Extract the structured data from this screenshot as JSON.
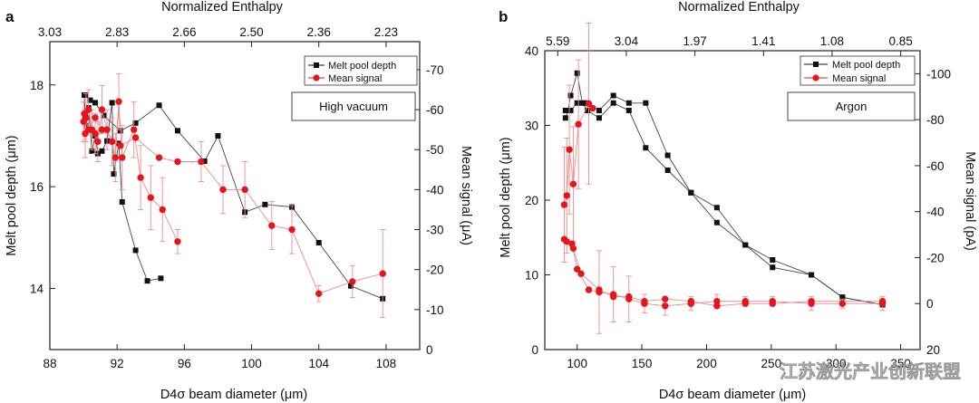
{
  "watermark": "江苏激光产业创新联盟",
  "colors": {
    "black_series": "#111111",
    "red_series": "#e8141b",
    "red_error": "#f08a8d",
    "frame": "#222222"
  },
  "chart_data": [
    {
      "type": "scatter",
      "panel": "a",
      "condition": "High vacuum",
      "xlabel": "D4σ beam diameter (μm)",
      "ylabel_left": "Melt pool depth (μm)",
      "ylabel_right": "Mean signal (μA)",
      "xlabel_top": "Normalized Enthalpy",
      "xlim": [
        88,
        110
      ],
      "ylim_left": [
        12.8,
        18.85
      ],
      "ylim_right": [
        0,
        -77
      ],
      "x_ticks": [
        "88",
        "92",
        "96",
        "100",
        "104",
        "108"
      ],
      "x_tick_values": [
        88,
        92,
        96,
        100,
        104,
        108
      ],
      "y_ticks_left": [
        "14",
        "16",
        "18"
      ],
      "y_tick_values_left": [
        14,
        16,
        18
      ],
      "y_ticks_right": [
        "0",
        "-10",
        "-20",
        "-30",
        "-40",
        "-50",
        "-60",
        "-70"
      ],
      "y_tick_values_right": [
        0,
        -10,
        -20,
        -30,
        -40,
        -50,
        -60,
        -70
      ],
      "top_ticks": [
        "3.03",
        "2.83",
        "2.66",
        "2.50",
        "2.36",
        "2.23"
      ],
      "top_tick_positions": [
        88,
        92,
        96,
        100,
        104,
        108
      ],
      "legend": [
        "Melt pool depth",
        "Mean signal"
      ],
      "series": [
        {
          "name": "Melt pool depth",
          "axis": "left",
          "marker": "square",
          "lines": [
            [
              [
                90.05,
                17.8
              ],
              [
                90.1,
                17.35
              ],
              [
                90.15,
                17.2
              ],
              [
                90.3,
                17.55
              ],
              [
                90.5,
                16.7
              ],
              [
                90.7,
                17.0
              ],
              [
                90.85,
                16.65
              ],
              [
                91.1,
                16.7
              ],
              [
                91.4,
                16.9
              ],
              [
                91.7,
                17.65
              ],
              [
                91.8,
                16.25
              ],
              [
                92.1,
                16.85
              ],
              [
                92.3,
                15.7
              ],
              [
                93.1,
                14.75
              ],
              [
                93.8,
                14.15
              ],
              [
                94.6,
                14.2
              ]
            ],
            [
              [
                90.1,
                17.8
              ],
              [
                90.4,
                17.7
              ],
              [
                90.7,
                17.65
              ],
              [
                91.2,
                17.4
              ],
              [
                92.2,
                17.1
              ],
              [
                93.1,
                17.25
              ],
              [
                94.5,
                17.6
              ],
              [
                95.6,
                17.1
              ],
              [
                97.2,
                16.5
              ],
              [
                98.0,
                17.0
              ],
              [
                99.6,
                15.5
              ],
              [
                100.8,
                15.65
              ],
              [
                102.4,
                15.6
              ],
              [
                104.0,
                14.9
              ],
              [
                105.9,
                14.05
              ],
              [
                107.8,
                13.8
              ]
            ]
          ]
        },
        {
          "name": "Mean signal",
          "axis": "right",
          "marker": "circle",
          "lines": [
            [
              [
                90.0,
                -57
              ],
              [
                90.1,
                -54
              ],
              [
                90.15,
                -58
              ],
              [
                90.3,
                -60
              ],
              [
                90.5,
                -55
              ],
              [
                90.7,
                -54
              ],
              [
                90.85,
                -52
              ],
              [
                91.1,
                -60
              ],
              [
                91.4,
                -55
              ],
              [
                91.7,
                -52
              ],
              [
                91.9,
                -48
              ],
              [
                92.1,
                -62
              ],
              [
                92.3,
                -48
              ],
              [
                93.0,
                -55
              ],
              [
                93.4,
                -43
              ],
              [
                94.0,
                -38
              ],
              [
                94.7,
                -35
              ],
              [
                95.6,
                -27
              ]
            ],
            [
              [
                90.05,
                -59
              ],
              [
                90.3,
                -55
              ],
              [
                90.7,
                -58
              ],
              [
                91.1,
                -55
              ],
              [
                92.2,
                -51
              ],
              [
                93.1,
                -53
              ],
              [
                94.5,
                -48
              ],
              [
                95.6,
                -47
              ],
              [
                97.0,
                -47
              ],
              [
                98.3,
                -40
              ],
              [
                99.6,
                -40
              ],
              [
                101.2,
                -31
              ],
              [
                102.4,
                -30
              ],
              [
                104.0,
                -14
              ],
              [
                106.0,
                -17
              ],
              [
                107.8,
                -19
              ]
            ]
          ],
          "error_bars": [
            [
              90.0,
              5
            ],
            [
              90.1,
              6
            ],
            [
              90.15,
              6
            ],
            [
              90.3,
              5
            ],
            [
              90.5,
              5
            ],
            [
              90.7,
              5
            ],
            [
              90.85,
              5
            ],
            [
              91.1,
              6
            ],
            [
              91.4,
              5
            ],
            [
              91.7,
              6
            ],
            [
              91.9,
              6
            ],
            [
              92.1,
              7
            ],
            [
              92.3,
              8
            ],
            [
              93.0,
              7
            ],
            [
              93.4,
              8
            ],
            [
              94.0,
              8
            ],
            [
              94.7,
              8
            ],
            [
              95.6,
              3
            ],
            [
              97.0,
              5
            ],
            [
              98.3,
              6
            ],
            [
              99.6,
              7
            ],
            [
              101.2,
              6
            ],
            [
              102.4,
              6
            ],
            [
              104.0,
              2
            ],
            [
              106.0,
              4
            ],
            [
              107.8,
              11
            ]
          ]
        }
      ]
    },
    {
      "type": "scatter",
      "panel": "b",
      "condition": "Argon",
      "xlabel": "D4σ beam diameter (μm)",
      "ylabel_left": "Melt pool depth (μm)",
      "ylabel_right": "Mean signal (pA)",
      "xlabel_top": "Normalized Enthalpy",
      "xlim": [
        75,
        365
      ],
      "ylim_left": [
        0,
        40
      ],
      "ylim_right": [
        20,
        -110
      ],
      "x_ticks": [
        "100",
        "150",
        "200",
        "250",
        "300",
        "350"
      ],
      "x_tick_values": [
        100,
        150,
        200,
        250,
        300,
        350
      ],
      "y_ticks_left": [
        "0",
        "10",
        "20",
        "30",
        "40"
      ],
      "y_tick_values_left": [
        0,
        10,
        20,
        30,
        40
      ],
      "y_ticks_right": [
        "20",
        "0",
        "-20",
        "-40",
        "-60",
        "-80",
        "-100"
      ],
      "y_tick_values_right": [
        20,
        0,
        -20,
        -40,
        -60,
        -80,
        -100
      ],
      "top_ticks": [
        "5.59",
        "3.04",
        "1.97",
        "1.41",
        "1.08",
        "0.85"
      ],
      "top_tick_positions": [
        85,
        138,
        191,
        244,
        297,
        350
      ],
      "legend": [
        "Melt pool depth",
        "Mean signal"
      ],
      "series": [
        {
          "name": "Melt pool depth",
          "axis": "left",
          "marker": "square",
          "lines": [
            [
              [
                91,
                31
              ],
              [
                93,
                32
              ],
              [
                95,
                34
              ],
              [
                100,
                37
              ],
              [
                104,
                33
              ],
              [
                108,
                32
              ],
              [
                117,
                31
              ],
              [
                128,
                33
              ],
              [
                140,
                32
              ],
              [
                153,
                27
              ],
              [
                170,
                24
              ],
              [
                188,
                21
              ],
              [
                208,
                17
              ],
              [
                230,
                14
              ],
              [
                251,
                11
              ],
              [
                281,
                10
              ],
              [
                305,
                7
              ],
              [
                336,
                6
              ]
            ],
            [
              [
                91,
                32
              ],
              [
                95,
                32
              ],
              [
                100,
                33
              ],
              [
                106,
                33
              ],
              [
                117,
                32
              ],
              [
                128,
                34
              ],
              [
                140,
                33
              ],
              [
                153,
                33
              ],
              [
                170,
                26
              ],
              [
                188,
                21
              ],
              [
                208,
                19
              ],
              [
                230,
                14
              ],
              [
                251,
                12
              ],
              [
                281,
                10
              ],
              [
                305,
                7
              ],
              [
                336,
                6
              ]
            ]
          ]
        },
        {
          "name": "Mean signal",
          "axis": "right",
          "marker": "circle",
          "lines": [
            [
              [
                90,
                -43
              ],
              [
                92,
                -47
              ],
              [
                94,
                -67
              ],
              [
                97,
                -52
              ],
              [
                101,
                -78
              ],
              [
                109,
                -87
              ],
              [
                112,
                -85
              ]
            ],
            [
              [
                90,
                -28
              ],
              [
                92,
                -27
              ],
              [
                96,
                -26
              ],
              [
                100,
                -15
              ],
              [
                109,
                -6
              ],
              [
                117,
                -5
              ],
              [
                128,
                -4
              ],
              [
                140,
                -2
              ],
              [
                152,
                0
              ],
              [
                168,
                1
              ],
              [
                188,
                0
              ],
              [
                208,
                -1
              ],
              [
                230,
                -1
              ],
              [
                251,
                -1
              ],
              [
                281,
                0
              ],
              [
                305,
                0
              ],
              [
                336,
                0
              ]
            ],
            [
              [
                97,
                -24
              ],
              [
                103,
                -13
              ],
              [
                117,
                -6
              ],
              [
                128,
                -3
              ],
              [
                140,
                -3
              ],
              [
                152,
                -1
              ],
              [
                168,
                -2
              ],
              [
                188,
                -1
              ],
              [
                208,
                1
              ],
              [
                230,
                0
              ],
              [
                251,
                0
              ],
              [
                281,
                -1
              ],
              [
                336,
                -1
              ]
            ]
          ],
          "error_bars": [
            [
              90,
              25
            ],
            [
              92,
              25
            ],
            [
              94,
              28
            ],
            [
              97,
              25
            ],
            [
              101,
              28
            ],
            [
              109,
              35
            ],
            [
              117,
              18
            ],
            [
              128,
              12
            ],
            [
              140,
              10
            ],
            [
              152,
              4
            ],
            [
              168,
              4
            ],
            [
              188,
              3
            ],
            [
              208,
              3
            ],
            [
              230,
              2
            ],
            [
              251,
              2
            ],
            [
              281,
              3
            ],
            [
              305,
              2
            ],
            [
              336,
              3
            ]
          ]
        }
      ]
    }
  ]
}
